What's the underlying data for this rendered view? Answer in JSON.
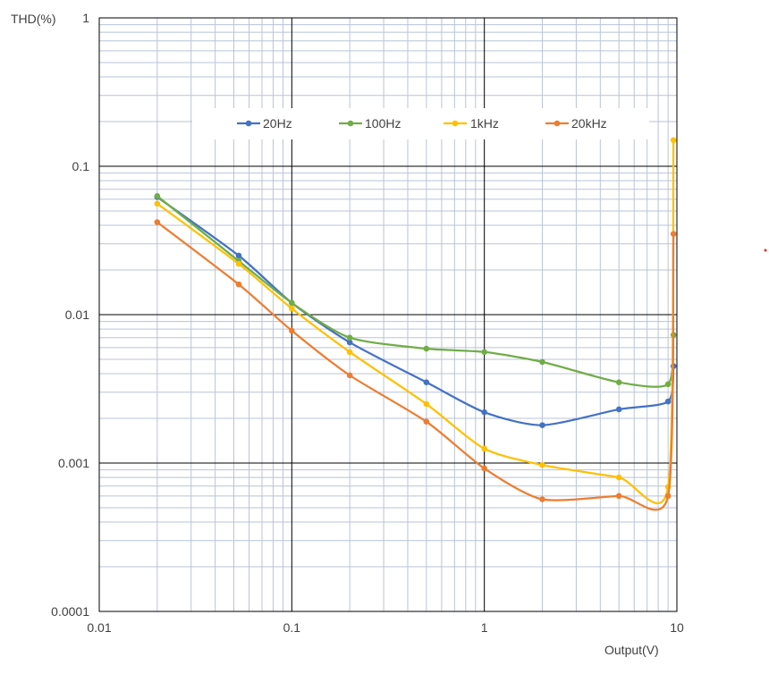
{
  "chart_data": {
    "type": "line",
    "xlabel": "Output(V)",
    "ylabel": "THD(%)",
    "xscale": "log",
    "yscale": "log",
    "xlim": [
      0.01,
      10
    ],
    "ylim": [
      0.0001,
      1
    ],
    "xtick_labels": [
      "0.01",
      "0.1",
      "1",
      "10"
    ],
    "ytick_labels": [
      "1",
      "0.1",
      "0.01",
      "0.001",
      "0.0001"
    ],
    "grid": "major and minor",
    "legend": "top",
    "smooth": true,
    "markers": "circle",
    "series": [
      {
        "name": "20Hz",
        "color": "#4472C4",
        "x": [
          0.02,
          0.053,
          0.1,
          0.2,
          0.5,
          1,
          2,
          5,
          9,
          9.6
        ],
        "y": [
          0.062,
          0.025,
          0.012,
          0.0065,
          0.0035,
          0.0022,
          0.0018,
          0.0023,
          0.0026,
          0.0045
        ]
      },
      {
        "name": "100Hz",
        "color": "#70AD47",
        "x": [
          0.02,
          0.053,
          0.1,
          0.2,
          0.5,
          1,
          2,
          5,
          9,
          9.6
        ],
        "y": [
          0.063,
          0.023,
          0.012,
          0.007,
          0.0059,
          0.0056,
          0.0048,
          0.0035,
          0.0034,
          0.0073
        ]
      },
      {
        "name": "1kHz",
        "color": "#FFC000",
        "x": [
          0.02,
          0.053,
          0.1,
          0.2,
          0.5,
          1,
          2,
          5,
          9,
          9.6
        ],
        "y": [
          0.056,
          0.022,
          0.011,
          0.0056,
          0.0025,
          0.00125,
          0.00097,
          0.0008,
          0.00069,
          0.15
        ]
      },
      {
        "name": "20kHz",
        "color": "#ED7D31",
        "x": [
          0.02,
          0.053,
          0.1,
          0.2,
          0.5,
          1,
          2,
          5,
          9,
          9.6
        ],
        "y": [
          0.042,
          0.016,
          0.0078,
          0.0039,
          0.0019,
          0.00092,
          0.00057,
          0.0006,
          0.0006,
          0.035
        ]
      }
    ]
  }
}
